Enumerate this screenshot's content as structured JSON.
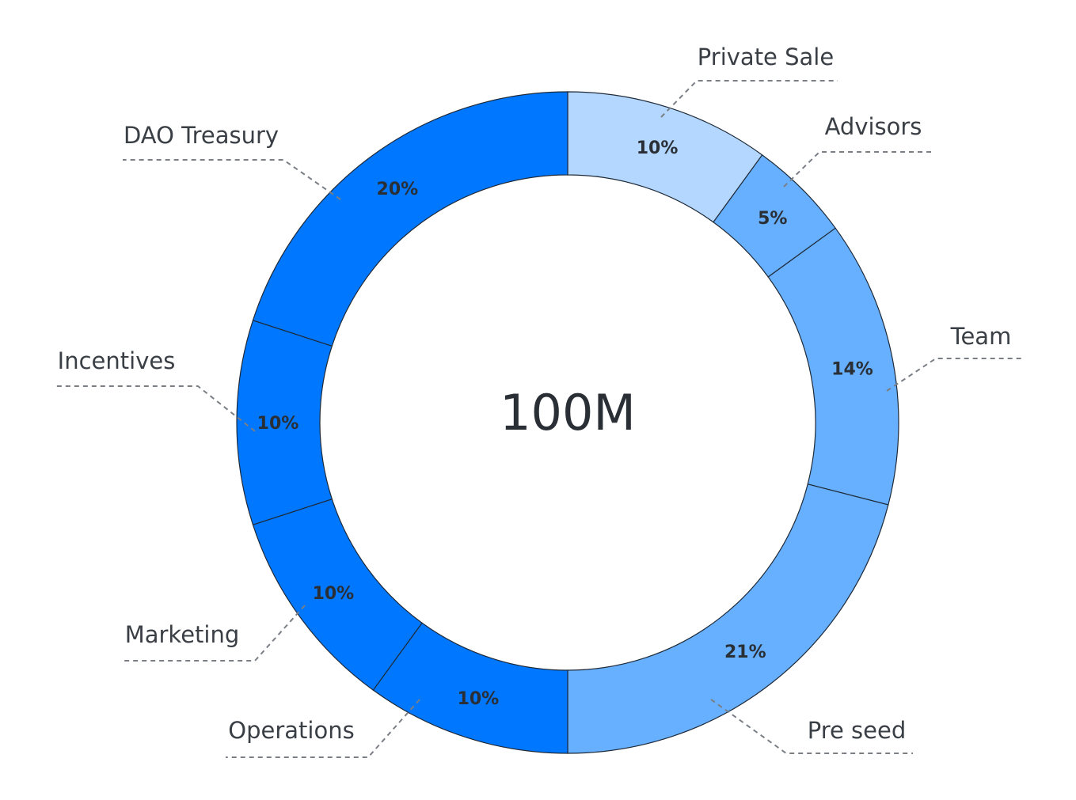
{
  "chart_data": {
    "type": "pie",
    "variant": "donut",
    "center_label": "100M",
    "categories": [
      "Private Sale",
      "Advisors",
      "Team",
      "Pre seed",
      "Operations",
      "Marketing",
      "Incentives",
      "DAO Treasury"
    ],
    "values": [
      10,
      5,
      14,
      21,
      10,
      10,
      10,
      20
    ],
    "value_labels": [
      "10%",
      "5%",
      "14%",
      "21%",
      "10%",
      "10%",
      "10%",
      "20%"
    ],
    "colors": [
      "#b3d7ff",
      "#66b0ff",
      "#66b0ff",
      "#66b0ff",
      "#0077ff",
      "#0077ff",
      "#0077ff",
      "#0077ff"
    ],
    "start_angle": "top",
    "direction": "clockwise",
    "legend": "none",
    "labels_position": "outside-with-dashed-leaders"
  }
}
